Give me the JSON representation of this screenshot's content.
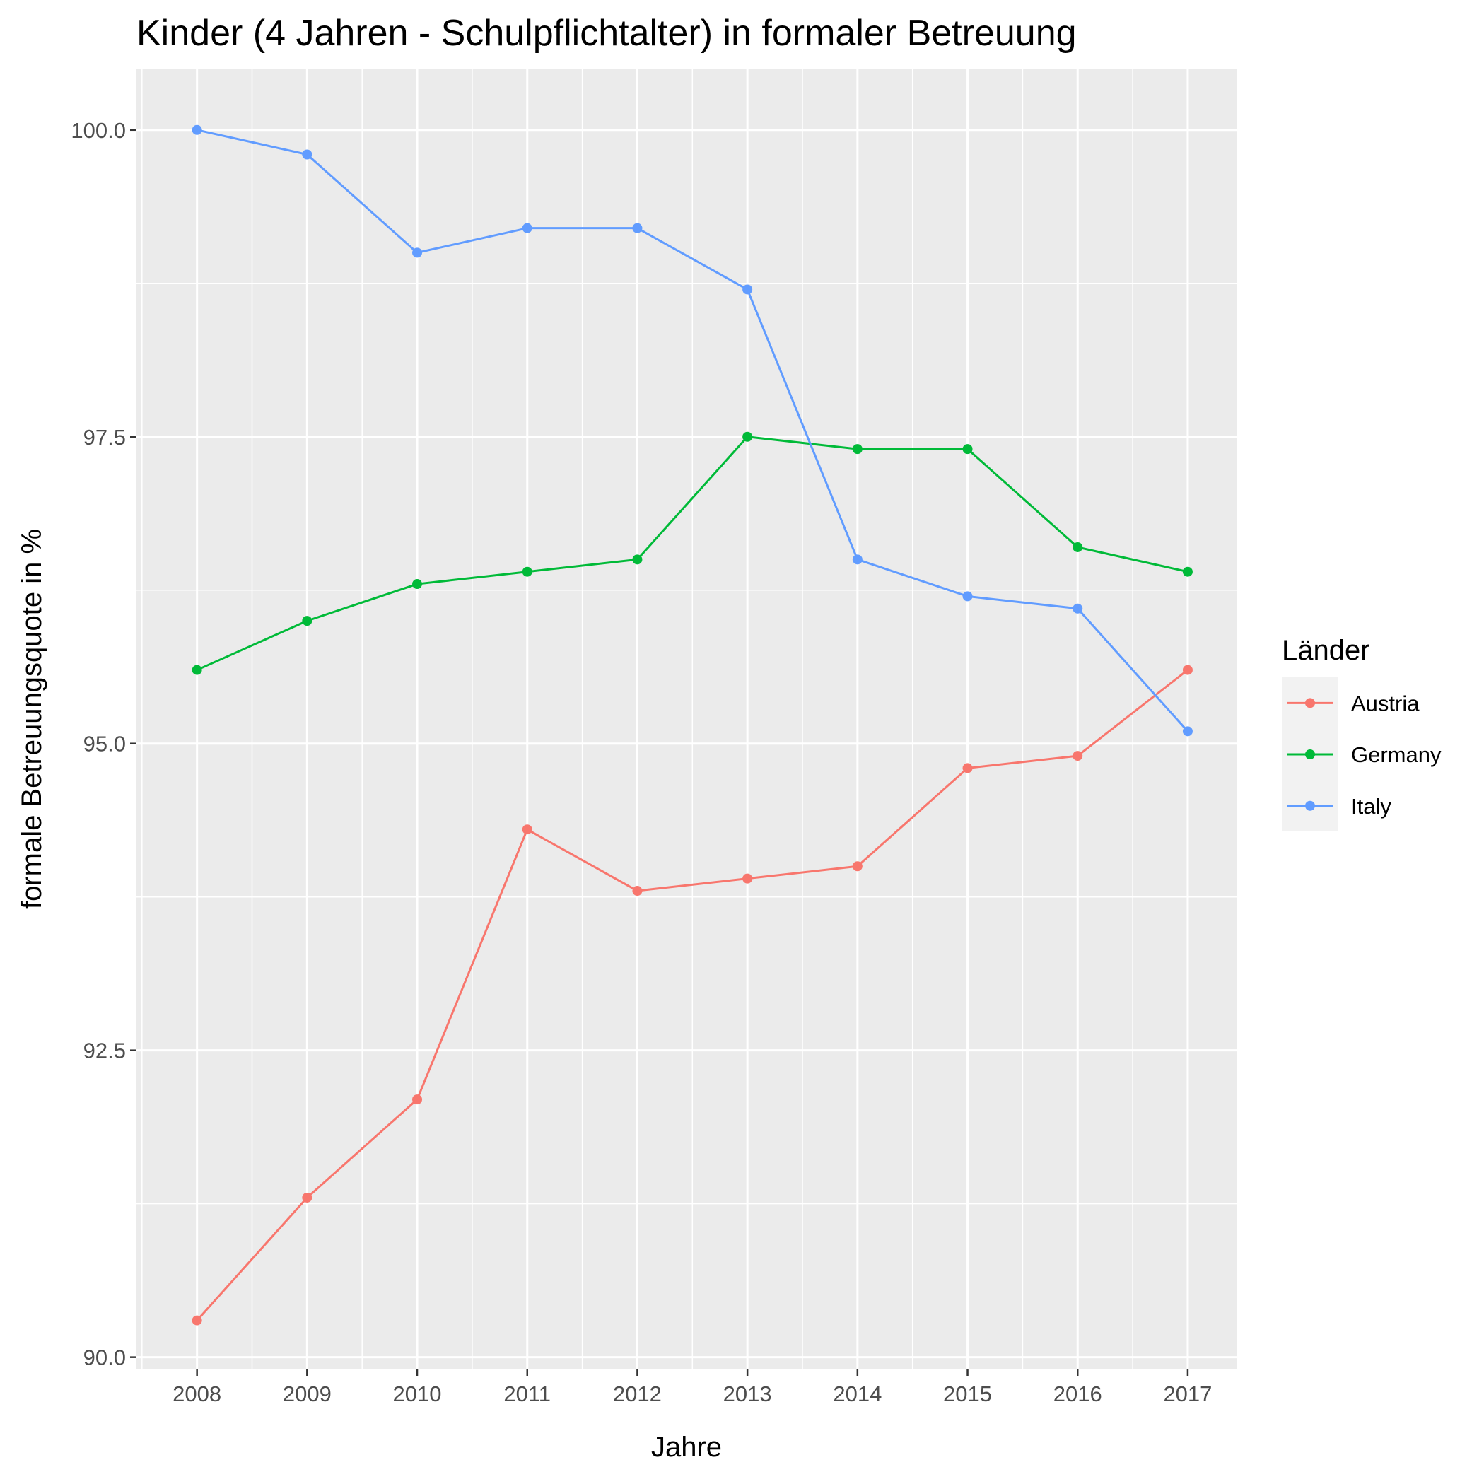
{
  "chart_data": {
    "type": "line",
    "title": "Kinder (4 Jahren - Schulpflichtalter) in formaler Betreuung",
    "xlabel": "Jahre",
    "ylabel": "formale Betreuungsquote in %",
    "x": [
      2008,
      2009,
      2010,
      2011,
      2012,
      2013,
      2014,
      2015,
      2016,
      2017
    ],
    "x_tick_labels": [
      "2008",
      "2009",
      "2010",
      "2011",
      "2012",
      "2013",
      "2014",
      "2015",
      "2016",
      "2017"
    ],
    "y_ticks": [
      90.0,
      92.5,
      95.0,
      97.5,
      100.0
    ],
    "y_tick_labels": [
      "90.0",
      "92.5",
      "95.0",
      "97.5",
      "100.0"
    ],
    "ylim": [
      89.9,
      100.5
    ],
    "xlim": [
      2007.45,
      2017.45
    ],
    "grid": true,
    "legend": {
      "title": "Länder",
      "position": "right"
    },
    "series": [
      {
        "name": "Austria",
        "color": "#F8766D",
        "values": [
          90.3,
          91.3,
          92.1,
          94.3,
          93.8,
          93.9,
          94.0,
          94.8,
          94.9,
          95.6
        ]
      },
      {
        "name": "Germany",
        "color": "#00BA38",
        "values": [
          95.6,
          96.0,
          96.3,
          96.4,
          96.5,
          97.5,
          97.4,
          97.4,
          96.6,
          96.4
        ]
      },
      {
        "name": "Italy",
        "color": "#619CFF",
        "values": [
          100.0,
          99.8,
          99.0,
          99.2,
          99.2,
          98.7,
          96.5,
          96.2,
          96.1,
          95.1
        ]
      }
    ]
  }
}
